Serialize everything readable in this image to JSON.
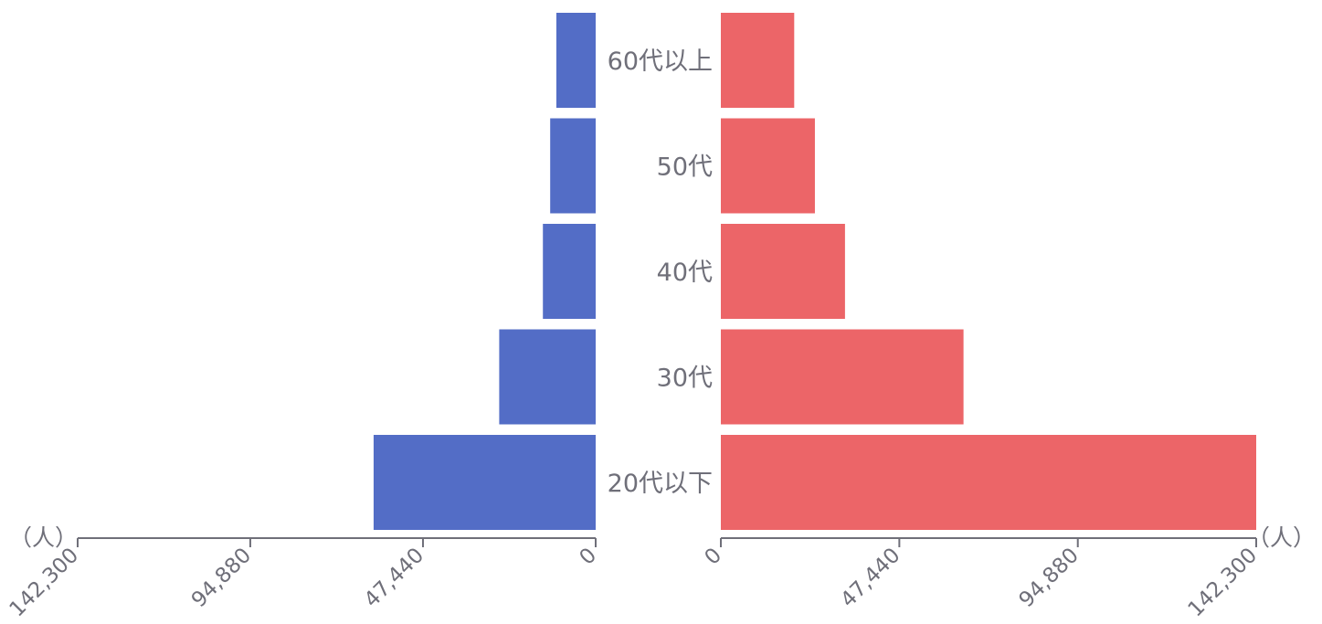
{
  "chart_data": {
    "type": "bar",
    "orientation": "horizontal-butterfly",
    "categories": [
      "60代以上",
      "50代",
      "40代",
      "30代",
      "20代以下"
    ],
    "series": [
      {
        "side": "left",
        "color": "#536dc6",
        "values": [
          10800,
          12500,
          14500,
          26500,
          61000
        ]
      },
      {
        "side": "right",
        "color": "#ec6568",
        "values": [
          19500,
          25000,
          33000,
          64500,
          147000
        ]
      }
    ],
    "xlim": [
      0,
      142300
    ],
    "ticks": [
      {
        "value": 0,
        "label": "0"
      },
      {
        "value": 47440,
        "label": "47,440"
      },
      {
        "value": 94880,
        "label": "94,880"
      },
      {
        "value": 142300,
        "label": "142,300"
      }
    ],
    "unit_label": "（人）",
    "axis_color": "#6f6f79"
  }
}
